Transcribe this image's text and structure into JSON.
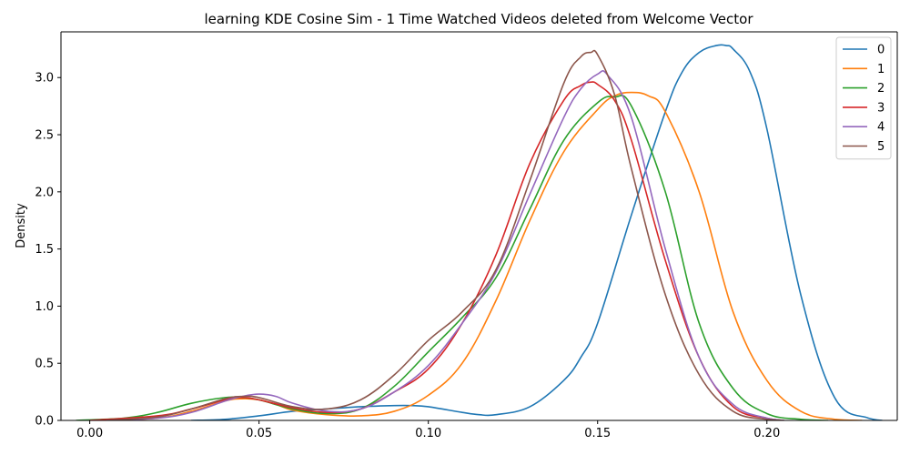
{
  "chart_data": {
    "type": "line",
    "title": "learning KDE Cosine Sim - 1 Time Watched Videos deleted from Welcome Vector",
    "xlabel": "",
    "ylabel": "Density",
    "xlim": [
      -0.0085,
      0.2385
    ],
    "ylim": [
      0,
      3.4
    ],
    "x_ticks": [
      "0.00",
      "0.05",
      "0.10",
      "0.15",
      "0.20"
    ],
    "y_ticks": [
      "0.0",
      "0.5",
      "1.0",
      "1.5",
      "2.0",
      "2.5",
      "3.0"
    ],
    "grid": false,
    "legend_position": "top-right",
    "series": [
      {
        "name": "0",
        "color": "#1f77b4",
        "x": [
          0.03,
          0.04,
          0.05,
          0.06,
          0.07,
          0.08,
          0.09,
          0.095,
          0.1,
          0.11,
          0.115,
          0.12,
          0.13,
          0.14,
          0.145,
          0.15,
          0.16,
          0.17,
          0.175,
          0.18,
          0.185,
          0.188,
          0.19,
          0.195,
          0.2,
          0.21,
          0.22,
          0.23,
          0.234
        ],
        "y": [
          0.0,
          0.01,
          0.04,
          0.08,
          0.1,
          0.12,
          0.13,
          0.13,
          0.12,
          0.07,
          0.05,
          0.05,
          0.12,
          0.35,
          0.55,
          0.85,
          1.8,
          2.7,
          3.05,
          3.22,
          3.28,
          3.28,
          3.25,
          3.05,
          2.55,
          1.1,
          0.2,
          0.02,
          0.0
        ]
      },
      {
        "name": "1",
        "color": "#ff7f0e",
        "x": [
          0.005,
          0.02,
          0.03,
          0.04,
          0.045,
          0.05,
          0.055,
          0.06,
          0.07,
          0.08,
          0.09,
          0.1,
          0.11,
          0.12,
          0.13,
          0.14,
          0.15,
          0.155,
          0.16,
          0.165,
          0.17,
          0.18,
          0.19,
          0.2,
          0.21,
          0.22,
          0.228
        ],
        "y": [
          0.0,
          0.02,
          0.08,
          0.17,
          0.19,
          0.18,
          0.14,
          0.09,
          0.05,
          0.04,
          0.08,
          0.22,
          0.5,
          1.05,
          1.75,
          2.35,
          2.72,
          2.84,
          2.87,
          2.84,
          2.7,
          2.0,
          0.95,
          0.35,
          0.08,
          0.01,
          0.0
        ]
      },
      {
        "name": "2",
        "color": "#2ca02c",
        "x": [
          -0.004,
          0.01,
          0.02,
          0.03,
          0.04,
          0.045,
          0.05,
          0.06,
          0.07,
          0.08,
          0.09,
          0.1,
          0.11,
          0.12,
          0.13,
          0.14,
          0.15,
          0.155,
          0.16,
          0.17,
          0.18,
          0.19,
          0.2,
          0.21,
          0.218
        ],
        "y": [
          0.0,
          0.02,
          0.07,
          0.15,
          0.2,
          0.2,
          0.18,
          0.1,
          0.06,
          0.1,
          0.3,
          0.6,
          0.9,
          1.25,
          1.85,
          2.45,
          2.78,
          2.83,
          2.75,
          2.0,
          0.85,
          0.28,
          0.06,
          0.01,
          0.0
        ]
      },
      {
        "name": "3",
        "color": "#d62728",
        "x": [
          0.0,
          0.02,
          0.03,
          0.04,
          0.045,
          0.05,
          0.06,
          0.07,
          0.08,
          0.09,
          0.1,
          0.11,
          0.12,
          0.13,
          0.14,
          0.145,
          0.148,
          0.15,
          0.155,
          0.16,
          0.17,
          0.18,
          0.19,
          0.2,
          0.205
        ],
        "y": [
          0.0,
          0.04,
          0.1,
          0.18,
          0.2,
          0.18,
          0.11,
          0.07,
          0.1,
          0.25,
          0.45,
          0.85,
          1.45,
          2.25,
          2.8,
          2.93,
          2.96,
          2.94,
          2.8,
          2.45,
          1.4,
          0.55,
          0.12,
          0.02,
          0.0
        ]
      },
      {
        "name": "4",
        "color": "#9467bd",
        "x": [
          0.005,
          0.02,
          0.03,
          0.04,
          0.045,
          0.05,
          0.055,
          0.06,
          0.07,
          0.08,
          0.09,
          0.1,
          0.11,
          0.12,
          0.13,
          0.14,
          0.145,
          0.15,
          0.153,
          0.16,
          0.17,
          0.18,
          0.19,
          0.2,
          0.205
        ],
        "y": [
          0.0,
          0.02,
          0.07,
          0.17,
          0.21,
          0.23,
          0.21,
          0.15,
          0.08,
          0.1,
          0.25,
          0.48,
          0.85,
          1.3,
          1.98,
          2.65,
          2.9,
          3.03,
          3.02,
          2.65,
          1.5,
          0.55,
          0.14,
          0.02,
          0.0
        ]
      },
      {
        "name": "5",
        "color": "#8c564b",
        "x": [
          0.005,
          0.02,
          0.03,
          0.04,
          0.045,
          0.05,
          0.06,
          0.07,
          0.08,
          0.09,
          0.1,
          0.11,
          0.12,
          0.13,
          0.14,
          0.145,
          0.148,
          0.15,
          0.155,
          0.16,
          0.17,
          0.18,
          0.19,
          0.2,
          0.205
        ],
        "y": [
          0.0,
          0.03,
          0.1,
          0.19,
          0.21,
          0.2,
          0.12,
          0.1,
          0.18,
          0.4,
          0.7,
          0.95,
          1.32,
          2.1,
          2.95,
          3.18,
          3.22,
          3.2,
          2.85,
          2.2,
          1.1,
          0.4,
          0.08,
          0.01,
          0.0
        ]
      }
    ]
  }
}
